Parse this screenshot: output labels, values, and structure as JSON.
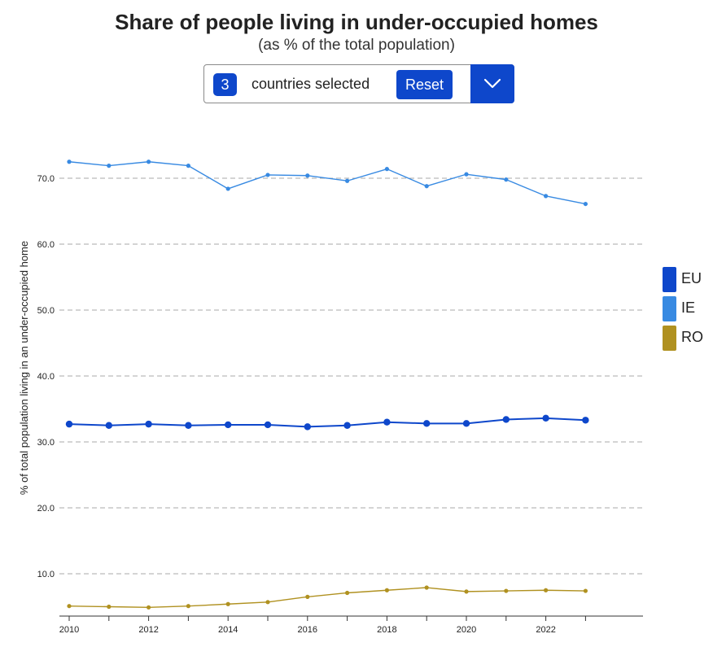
{
  "header": {
    "title": "Share of people living in under-occupied homes",
    "subtitle": "(as % of the total population)"
  },
  "selector": {
    "count": "3",
    "text": "countries selected",
    "reset_label": "Reset"
  },
  "colors": {
    "accent": "#0e47cb",
    "EU": "#0e47cb",
    "IE": "#388ae2",
    "RO": "#b09120"
  },
  "chart_data": {
    "type": "line",
    "title": "Share of people living in under-occupied homes",
    "subtitle": "(as % of the total population)",
    "ylabel": "% of total population living in an under-occupied home",
    "xlabel": "",
    "x": [
      2010,
      2011,
      2012,
      2013,
      2014,
      2015,
      2016,
      2017,
      2018,
      2019,
      2020,
      2021,
      2022,
      2023
    ],
    "x_tick_labels": [
      "2010",
      "2012",
      "2014",
      "2016",
      "2018",
      "2020",
      "2022"
    ],
    "y_tick_labels": [
      "10.0",
      "20.0",
      "30.0",
      "40.0",
      "50.0",
      "60.0",
      "70.0"
    ],
    "ylim": [
      0,
      80
    ],
    "xlim": [
      2010,
      2024.5
    ],
    "grid": "horizontal dashed",
    "legend_position": "right",
    "series": [
      {
        "name": "EU",
        "values": [
          32.7,
          32.5,
          32.7,
          32.5,
          32.6,
          32.6,
          32.3,
          32.5,
          33.0,
          32.8,
          32.8,
          33.4,
          33.6,
          33.3
        ]
      },
      {
        "name": "IE",
        "values": [
          72.5,
          71.9,
          72.5,
          71.9,
          68.4,
          70.5,
          70.4,
          69.6,
          71.4,
          68.8,
          70.6,
          69.8,
          67.3,
          66.1
        ]
      },
      {
        "name": "RO",
        "values": [
          5.1,
          5.0,
          4.9,
          5.1,
          5.4,
          5.7,
          6.5,
          7.1,
          7.5,
          7.9,
          7.3,
          7.4,
          7.5,
          7.4
        ]
      }
    ]
  }
}
